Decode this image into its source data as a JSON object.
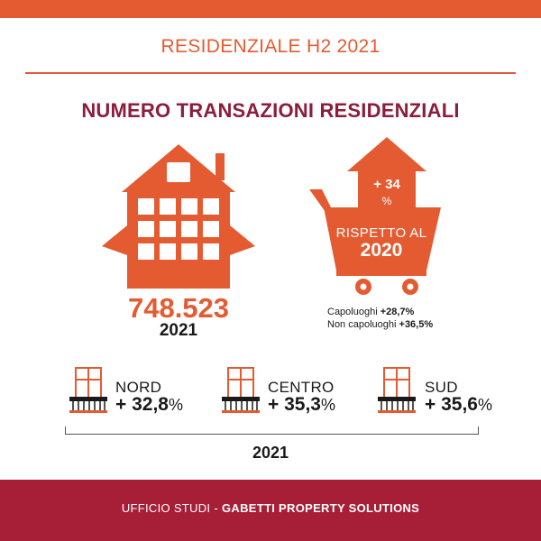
{
  "header": {
    "title": "RESIDENZIALE H2 2021"
  },
  "section": {
    "title": "NUMERO TRANSAZIONI RESIDENZIALI"
  },
  "total": {
    "value": "748.523",
    "year": "2021"
  },
  "comparison": {
    "growth": "+ 34",
    "growth_unit": "%",
    "label": "RISPETTO AL",
    "year": "2020",
    "breakdown": [
      {
        "label": "Capoluoghi",
        "value": "+28,7%"
      },
      {
        "label": "Non capoluoghi",
        "value": "+36,5%"
      }
    ]
  },
  "areas": [
    {
      "name": "NORD",
      "value": "+ 32,8",
      "unit": "%"
    },
    {
      "name": "CENTRO",
      "value": "+ 35,3",
      "unit": "%"
    },
    {
      "name": "SUD",
      "value": "+ 35,6",
      "unit": "%"
    }
  ],
  "footer": {
    "year": "2021",
    "dept": "UFFICIO STUDI",
    "separator": "-",
    "brand": "GABETTI PROPERTY SOLUTIONS"
  },
  "colors": {
    "accent": "#e45b31",
    "title": "#8c1d3b",
    "footer_bg": "#a71e37"
  },
  "icons": {
    "house": "house-icon",
    "cart": "shopping-cart-house-icon",
    "area": "balcony-window-icon"
  }
}
